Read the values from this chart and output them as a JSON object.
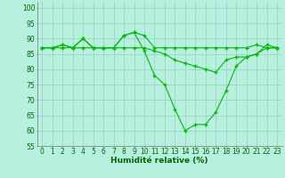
{
  "line1": {
    "x": [
      0,
      1,
      2,
      3,
      4,
      5,
      6,
      7,
      8,
      9,
      10,
      11,
      12,
      13,
      14,
      15,
      16,
      17,
      18,
      19,
      20,
      21,
      22,
      23
    ],
    "y": [
      87,
      87,
      88,
      87,
      90,
      87,
      87,
      87,
      91,
      92,
      91,
      87,
      87,
      87,
      87,
      87,
      87,
      87,
      87,
      87,
      87,
      88,
      87,
      87
    ]
  },
  "line2": {
    "x": [
      0,
      1,
      2,
      3,
      4,
      5,
      6,
      7,
      8,
      9,
      10,
      11,
      12,
      13,
      14,
      15,
      16,
      17,
      18,
      19,
      20,
      21,
      22,
      23
    ],
    "y": [
      87,
      87,
      88,
      87,
      90,
      87,
      87,
      87,
      91,
      92,
      86,
      78,
      75,
      67,
      60,
      62,
      62,
      66,
      73,
      81,
      84,
      85,
      88,
      87
    ]
  },
  "line3": {
    "x": [
      0,
      1,
      2,
      3,
      4,
      5,
      6,
      7,
      8,
      9,
      10,
      11,
      12,
      13,
      14,
      15,
      16,
      17,
      18,
      19,
      20,
      21,
      22,
      23
    ],
    "y": [
      87,
      87,
      87,
      87,
      87,
      87,
      87,
      87,
      87,
      87,
      87,
      86,
      85,
      83,
      82,
      81,
      80,
      79,
      83,
      84,
      84,
      85,
      87,
      87
    ]
  },
  "line_color": "#00bb00",
  "bg_color": "#b8f0e0",
  "grid_color": "#90d0c0",
  "xlabel": "Humidité relative (%)",
  "xlabel_color": "#006600",
  "xlabel_fontsize": 6.5,
  "tick_color": "#006600",
  "tick_fontsize": 5.5,
  "ylim": [
    55,
    102
  ],
  "yticks": [
    55,
    60,
    65,
    70,
    75,
    80,
    85,
    90,
    95,
    100
  ],
  "xlim": [
    -0.5,
    23.5
  ],
  "xticks": [
    0,
    1,
    2,
    3,
    4,
    5,
    6,
    7,
    8,
    9,
    10,
    11,
    12,
    13,
    14,
    15,
    16,
    17,
    18,
    19,
    20,
    21,
    22,
    23
  ],
  "marker": "+"
}
